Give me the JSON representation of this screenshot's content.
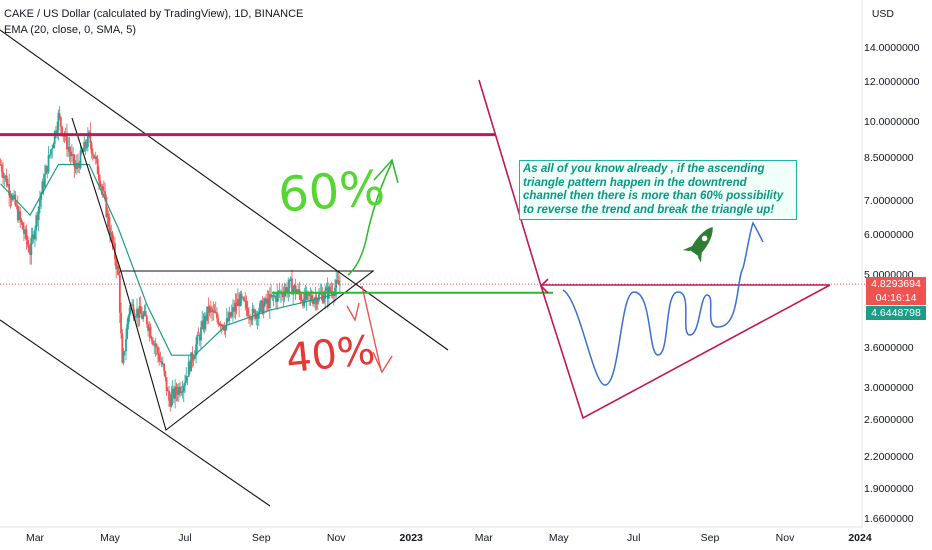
{
  "header": {
    "title": "CAKE / US Dollar (calculated by TradingView), 1D, BINANCE",
    "indicator": "EMA (20, close, 0, SMA, 5)"
  },
  "note": "As all of you know already , if the ascending triangle pattern happen in the downtrend channel then there is more than 60% possibility to reverse the trend and break the triangle up!",
  "annotations": {
    "up": "60%",
    "down": "40%"
  },
  "price_tags": {
    "last": "4.8293694",
    "countdown": "04:16:14",
    "ema": "4.6448798"
  },
  "colors": {
    "up": "#26a69a",
    "down": "#ef5350",
    "ema": "#1e9c87",
    "resistance": "#c2185b",
    "green": "#2eb82e",
    "blue": "#3b6fd4",
    "note": "#089981"
  },
  "chart_data": {
    "type": "candlestick",
    "title": "CAKE / US Dollar (calculated by TradingView), 1D, BINANCE",
    "y_scale": "log",
    "y_unit": "USD",
    "y_ticks": [
      "14.0000000",
      "12.0000000",
      "10.0000000",
      "8.5000000",
      "7.0000000",
      "6.0000000",
      "5.0000000",
      "3.6000000",
      "3.0000000",
      "2.6000000",
      "2.2000000",
      "1.9000000",
      "1.6600000"
    ],
    "x_ticks": [
      "Mar",
      "May",
      "Jul",
      "Sep",
      "Nov",
      "2023",
      "Mar",
      "May",
      "Jul",
      "Sep",
      "Nov",
      "2024"
    ],
    "price_path": [
      {
        "date": "2022-02-01",
        "price": 8.3
      },
      {
        "date": "2022-02-12",
        "price": 7.0
      },
      {
        "date": "2022-02-25",
        "price": 5.6
      },
      {
        "date": "2022-03-06",
        "price": 7.3
      },
      {
        "date": "2022-03-20",
        "price": 10.3
      },
      {
        "date": "2022-04-03",
        "price": 8.1
      },
      {
        "date": "2022-04-14",
        "price": 9.4
      },
      {
        "date": "2022-04-24",
        "price": 7.6
      },
      {
        "date": "2022-05-08",
        "price": 5.0
      },
      {
        "date": "2022-05-11",
        "price": 3.3
      },
      {
        "date": "2022-05-17",
        "price": 4.4
      },
      {
        "date": "2022-05-31",
        "price": 4.1
      },
      {
        "date": "2022-06-13",
        "price": 3.3
      },
      {
        "date": "2022-06-18",
        "price": 2.85
      },
      {
        "date": "2022-06-30",
        "price": 3.1
      },
      {
        "date": "2022-07-09",
        "price": 3.6
      },
      {
        "date": "2022-07-20",
        "price": 4.3
      },
      {
        "date": "2022-08-03",
        "price": 4.0
      },
      {
        "date": "2022-08-14",
        "price": 4.5
      },
      {
        "date": "2022-08-25",
        "price": 4.2
      },
      {
        "date": "2022-09-09",
        "price": 4.5
      },
      {
        "date": "2022-09-25",
        "price": 4.8
      },
      {
        "date": "2022-10-06",
        "price": 4.5
      },
      {
        "date": "2022-10-22",
        "price": 4.6
      },
      {
        "date": "2022-11-04",
        "price": 4.83
      }
    ],
    "ema_path": [
      {
        "date": "2022-02-01",
        "price": 7.6
      },
      {
        "date": "2022-02-25",
        "price": 6.6
      },
      {
        "date": "2022-03-20",
        "price": 8.3
      },
      {
        "date": "2022-04-14",
        "price": 8.3
      },
      {
        "date": "2022-05-08",
        "price": 6.2
      },
      {
        "date": "2022-05-31",
        "price": 4.4
      },
      {
        "date": "2022-06-20",
        "price": 3.5
      },
      {
        "date": "2022-07-09",
        "price": 3.5
      },
      {
        "date": "2022-08-03",
        "price": 4.0
      },
      {
        "date": "2022-09-09",
        "price": 4.3
      },
      {
        "date": "2022-10-06",
        "price": 4.45
      },
      {
        "date": "2022-11-04",
        "price": 4.64
      }
    ],
    "last_price": 4.8293694,
    "ema_value": 4.6448798,
    "horizontal_levels": [
      {
        "price": 9.5,
        "color": "#c2185b"
      },
      {
        "price": 4.6448798,
        "color": "#2eb82e"
      },
      {
        "price": 4.8293694,
        "color": "#ef5350",
        "style": "dotted"
      }
    ]
  }
}
